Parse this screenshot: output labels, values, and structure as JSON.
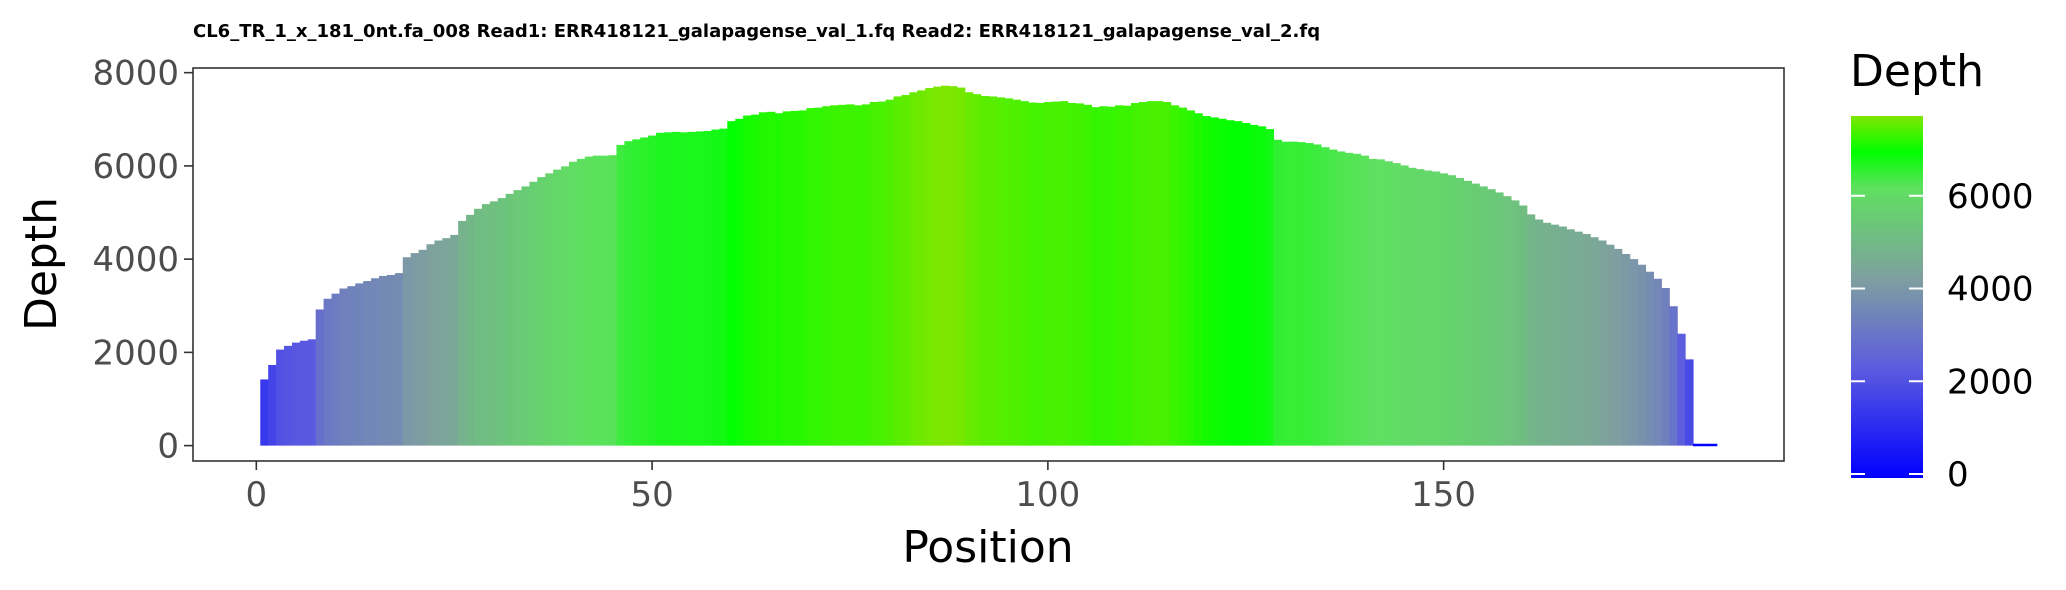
{
  "chart_data": {
    "type": "bar",
    "title": "CL6_TR_1_x_181_0nt.fa_008 Read1: ERR418121_galapagense_val_1.fq Read2: ERR418121_galapagense_val_2.fq",
    "xlabel": "Position",
    "ylabel": "Depth",
    "xlim": [
      -8,
      193
    ],
    "ylim": [
      -330,
      8100
    ],
    "xticks": [
      0,
      50,
      100,
      150
    ],
    "yticks": [
      0,
      2000,
      4000,
      6000,
      8000
    ],
    "x": [
      1,
      2,
      3,
      4,
      5,
      6,
      7,
      8,
      9,
      10,
      11,
      12,
      13,
      14,
      15,
      16,
      17,
      18,
      19,
      20,
      21,
      22,
      23,
      24,
      25,
      26,
      27,
      28,
      29,
      30,
      31,
      32,
      33,
      34,
      35,
      36,
      37,
      38,
      39,
      40,
      41,
      42,
      43,
      44,
      45,
      46,
      47,
      48,
      49,
      50,
      51,
      52,
      53,
      54,
      55,
      56,
      57,
      58,
      59,
      60,
      61,
      62,
      63,
      64,
      65,
      66,
      67,
      68,
      69,
      70,
      71,
      72,
      73,
      74,
      75,
      76,
      77,
      78,
      79,
      80,
      81,
      82,
      83,
      84,
      85,
      86,
      87,
      88,
      89,
      90,
      91,
      92,
      93,
      94,
      95,
      96,
      97,
      98,
      99,
      100,
      101,
      102,
      103,
      104,
      105,
      106,
      107,
      108,
      109,
      110,
      111,
      112,
      113,
      114,
      115,
      116,
      117,
      118,
      119,
      120,
      121,
      122,
      123,
      124,
      125,
      126,
      127,
      128,
      129,
      130,
      131,
      132,
      133,
      134,
      135,
      136,
      137,
      138,
      139,
      140,
      141,
      142,
      143,
      144,
      145,
      146,
      147,
      148,
      149,
      150,
      151,
      152,
      153,
      154,
      155,
      156,
      157,
      158,
      159,
      160,
      161,
      162,
      163,
      164,
      165,
      166,
      167,
      168,
      169,
      170,
      171,
      172,
      173,
      174,
      175,
      176,
      177,
      178,
      179,
      180,
      181,
      182,
      183,
      184
    ],
    "values": [
      1420,
      1730,
      2060,
      2140,
      2210,
      2250,
      2280,
      2920,
      3150,
      3260,
      3370,
      3420,
      3480,
      3530,
      3590,
      3640,
      3660,
      3700,
      4040,
      4130,
      4200,
      4320,
      4400,
      4450,
      4520,
      4820,
      4950,
      5080,
      5180,
      5240,
      5310,
      5400,
      5480,
      5560,
      5660,
      5760,
      5840,
      5920,
      5990,
      6090,
      6150,
      6200,
      6220,
      6220,
      6230,
      6450,
      6530,
      6570,
      6610,
      6650,
      6710,
      6720,
      6730,
      6720,
      6730,
      6740,
      6750,
      6780,
      6800,
      6960,
      7010,
      7080,
      7100,
      7150,
      7160,
      7130,
      7170,
      7180,
      7190,
      7240,
      7250,
      7280,
      7300,
      7310,
      7320,
      7300,
      7320,
      7370,
      7380,
      7420,
      7490,
      7520,
      7580,
      7620,
      7670,
      7700,
      7720,
      7710,
      7680,
      7580,
      7540,
      7500,
      7490,
      7470,
      7450,
      7420,
      7390,
      7360,
      7350,
      7370,
      7380,
      7390,
      7350,
      7340,
      7310,
      7260,
      7280,
      7270,
      7300,
      7290,
      7350,
      7370,
      7390,
      7390,
      7370,
      7300,
      7250,
      7190,
      7130,
      7070,
      7040,
      7010,
      6980,
      6960,
      6920,
      6880,
      6850,
      6790,
      6560,
      6520,
      6520,
      6510,
      6490,
      6460,
      6400,
      6350,
      6310,
      6280,
      6260,
      6220,
      6150,
      6140,
      6100,
      6060,
      6010,
      5960,
      5930,
      5900,
      5880,
      5840,
      5800,
      5740,
      5680,
      5620,
      5560,
      5500,
      5430,
      5350,
      5260,
      5150,
      4960,
      4850,
      4780,
      4740,
      4700,
      4640,
      4590,
      4540,
      4470,
      4400,
      4310,
      4220,
      4110,
      4000,
      3880,
      3730,
      3580,
      3380,
      2990,
      2400,
      1850,
      40,
      40,
      40
    ]
  },
  "legend": {
    "title": "Depth",
    "position": "right",
    "min": 0,
    "max": 7720,
    "ticks": [
      0,
      2000,
      4000,
      6000
    ],
    "colors": {
      "low": "#0000ff",
      "mid_low": "#5b5be0",
      "mid": "#7f9fa0",
      "mid_high": "#5fe060",
      "high_green": "#00ff00",
      "top": "#7fe600"
    }
  },
  "panel": {
    "background": "#ffffff",
    "border": "#333333",
    "grid": false
  }
}
